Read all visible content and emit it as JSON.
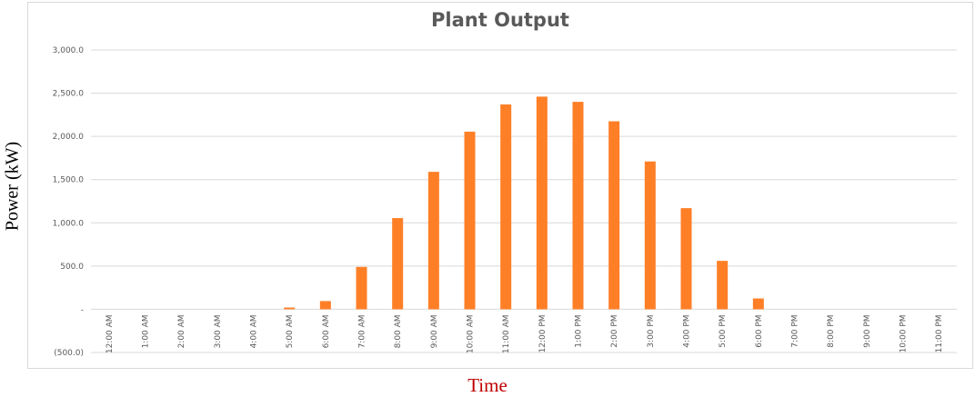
{
  "chart_data": {
    "type": "bar",
    "title": "Plant Output",
    "xlabel": "Time",
    "ylabel": "Power (kW)",
    "ylim": [
      -500,
      3000
    ],
    "yticks": [
      {
        "value": 3000,
        "label": "3,000.0"
      },
      {
        "value": 2500,
        "label": "2,500.0"
      },
      {
        "value": 2000,
        "label": "2,000.0"
      },
      {
        "value": 1500,
        "label": "1,500.0"
      },
      {
        "value": 1000,
        "label": "1,000.0"
      },
      {
        "value": 500,
        "label": "500.0"
      },
      {
        "value": 0,
        "label": "-"
      },
      {
        "value": -500,
        "label": "(500.0)"
      }
    ],
    "grid": true,
    "categories": [
      "12:00 AM",
      "1:00 AM",
      "2:00 AM",
      "3:00 AM",
      "4:00 AM",
      "5:00 AM",
      "6:00 AM",
      "7:00 AM",
      "8:00 AM",
      "9:00 AM",
      "10:00 AM",
      "11:00 AM",
      "12:00 PM",
      "1:00 PM",
      "2:00 PM",
      "3:00 PM",
      "4:00 PM",
      "5:00 PM",
      "6:00 PM",
      "7:00 PM",
      "8:00 PM",
      "9:00 PM",
      "10:00 PM",
      "11:00 PM"
    ],
    "values": [
      0,
      0,
      0,
      0,
      0,
      20,
      95,
      490,
      1055,
      1590,
      2055,
      2370,
      2460,
      2400,
      2175,
      1710,
      1170,
      560,
      125,
      0,
      0,
      0,
      0,
      0
    ],
    "bar_color": "#ff7f27",
    "grid_color": "#d9d9d9"
  }
}
